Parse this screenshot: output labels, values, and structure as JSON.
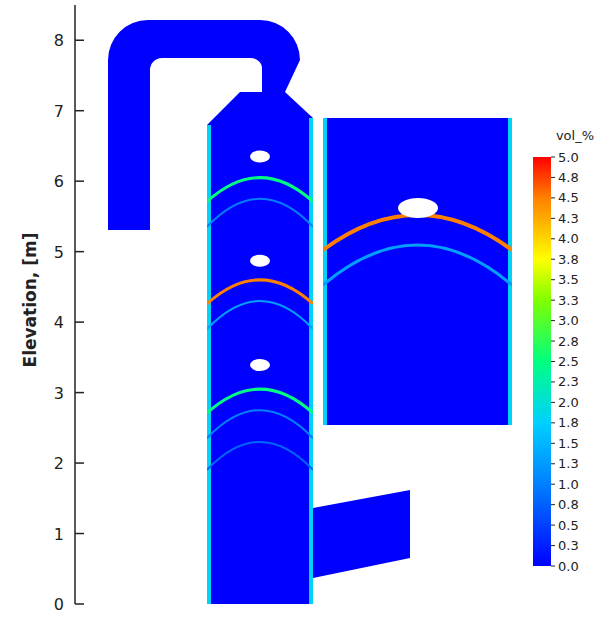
{
  "chart_data": {
    "type": "contour",
    "y_label": "Elevation, [m]",
    "ylim": [
      0,
      8.5
    ],
    "yticks": [
      0,
      1,
      2,
      3,
      4,
      5,
      6,
      7,
      8
    ],
    "obstacle_elevations": [
      6.35,
      4.87,
      3.39
    ],
    "arcs": [
      {
        "elevation": 6.05,
        "value": 2.5
      },
      {
        "elevation": 4.6,
        "value": 4.5
      },
      {
        "elevation": 3.05,
        "value": 2.5
      }
    ],
    "secondary_arcs": [
      {
        "elevation": 5.75,
        "value": 1.0
      },
      {
        "elevation": 4.3,
        "value": 1.3
      },
      {
        "elevation": 2.75,
        "value": 1.0
      },
      {
        "elevation": 2.3,
        "value": 0.8
      }
    ],
    "wall_value": 1.8,
    "colorbar": {
      "label": "vol_%",
      "range": [
        0,
        5
      ],
      "ticks": [
        {
          "value": 5,
          "label": "5.0"
        },
        {
          "value": 4.75,
          "label": "4.8"
        },
        {
          "value": 4.5,
          "label": "4.5"
        },
        {
          "value": 4.25,
          "label": "4.3"
        },
        {
          "value": 4,
          "label": "4.0"
        },
        {
          "value": 3.75,
          "label": "3.8"
        },
        {
          "value": 3.5,
          "label": "3.5"
        },
        {
          "value": 3.25,
          "label": "3.3"
        },
        {
          "value": 3,
          "label": "3.0"
        },
        {
          "value": 2.75,
          "label": "2.8"
        },
        {
          "value": 2.5,
          "label": "2.5"
        },
        {
          "value": 2.25,
          "label": "2.3"
        },
        {
          "value": 2,
          "label": "2.0"
        },
        {
          "value": 1.75,
          "label": "1.8"
        },
        {
          "value": 1.5,
          "label": "1.5"
        },
        {
          "value": 1.25,
          "label": "1.3"
        },
        {
          "value": 1,
          "label": "1.0"
        },
        {
          "value": 0.75,
          "label": "0.8"
        },
        {
          "value": 0.5,
          "label": "0.5"
        },
        {
          "value": 0.25,
          "label": "0.3"
        },
        {
          "value": 0,
          "label": "0.0"
        }
      ]
    }
  }
}
